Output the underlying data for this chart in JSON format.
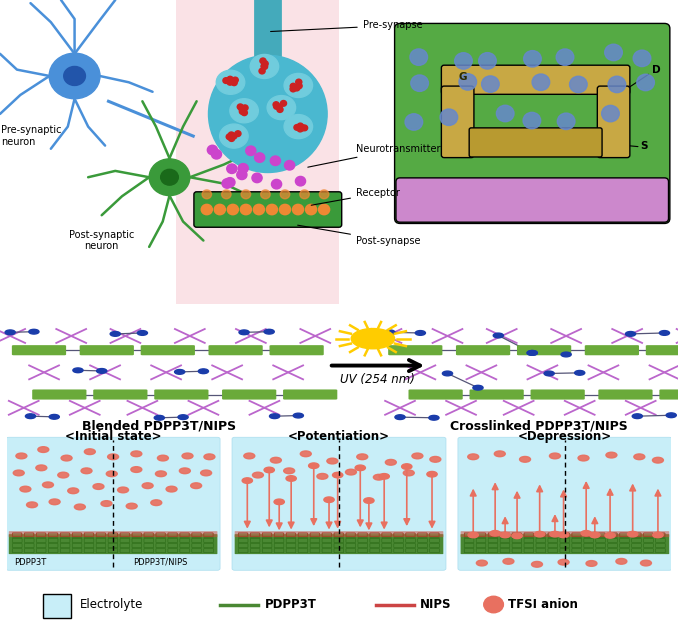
{
  "background_color": "#ffffff",
  "top_section": {
    "pre_synaptic_label": "Pre-synaptic\nneuron",
    "post_synaptic_label": "Post-synaptic\nneuron",
    "pre_synapse_label": "Pre-synapse",
    "neurotransmitter_label": "Neurotransmitter",
    "receptor_label": "Receptor",
    "post_synapse_label": "Post-synapse",
    "G_label": "G",
    "D_label": "D",
    "S_label": "S",
    "pink_color": "#f5c0c8",
    "neuron_blue": "#4a90d9",
    "neuron_green": "#3a9a3a",
    "synapse_blue": "#4ab8d0",
    "synapse_green": "#3a9a3a",
    "vesicle_color": "#70ccdd",
    "vesicle_dot": "#cc2222",
    "purple_dot": "#cc44cc",
    "orange_dot": "#ee8833",
    "transistor_green": "#55aa44",
    "transistor_purple": "#cc88cc",
    "transistor_gold": "#c8a844",
    "transistor_blue": "#6688cc"
  },
  "middle_section": {
    "left_label": "Blended PDPP3T/NIPS",
    "right_label": "Crosslinked PDPP3T/NIPS",
    "arrow_label": "UV (254 nm)",
    "pdpp3t_color": "#6aaa3a",
    "nips_color": "#bb66cc",
    "node_color": "#1a3caa",
    "link_color": "#555577",
    "sun_color": "#ffcc00",
    "sun_ray_color": "#ffcc00"
  },
  "bottom_section": {
    "panel1_title": "<Initial state>",
    "panel2_title": "<Potentiation>",
    "panel3_title": "<Depression>",
    "bg_color_top": "#c8eef8",
    "bg_color_bot": "#e8f8e8",
    "ion_color": "#e87060",
    "ion_fill": "#e87060",
    "green_layer": "#4a8833",
    "red_layer": "#cc5544",
    "pdppt3_label": "PDPP3T",
    "pdppt3_nips_label": "PDPP3T/NIPS"
  },
  "legend": {
    "electrolyte_label": "Electrolyte",
    "pdpp3t_label": "PDPP3T",
    "nips_label": "NIPS",
    "tfsi_label": "TFSI anion",
    "electrolyte_color": "#c8eef8",
    "pdpp3t_color": "#4a8833",
    "nips_color": "#cc4444",
    "tfsi_color": "#e87060"
  }
}
